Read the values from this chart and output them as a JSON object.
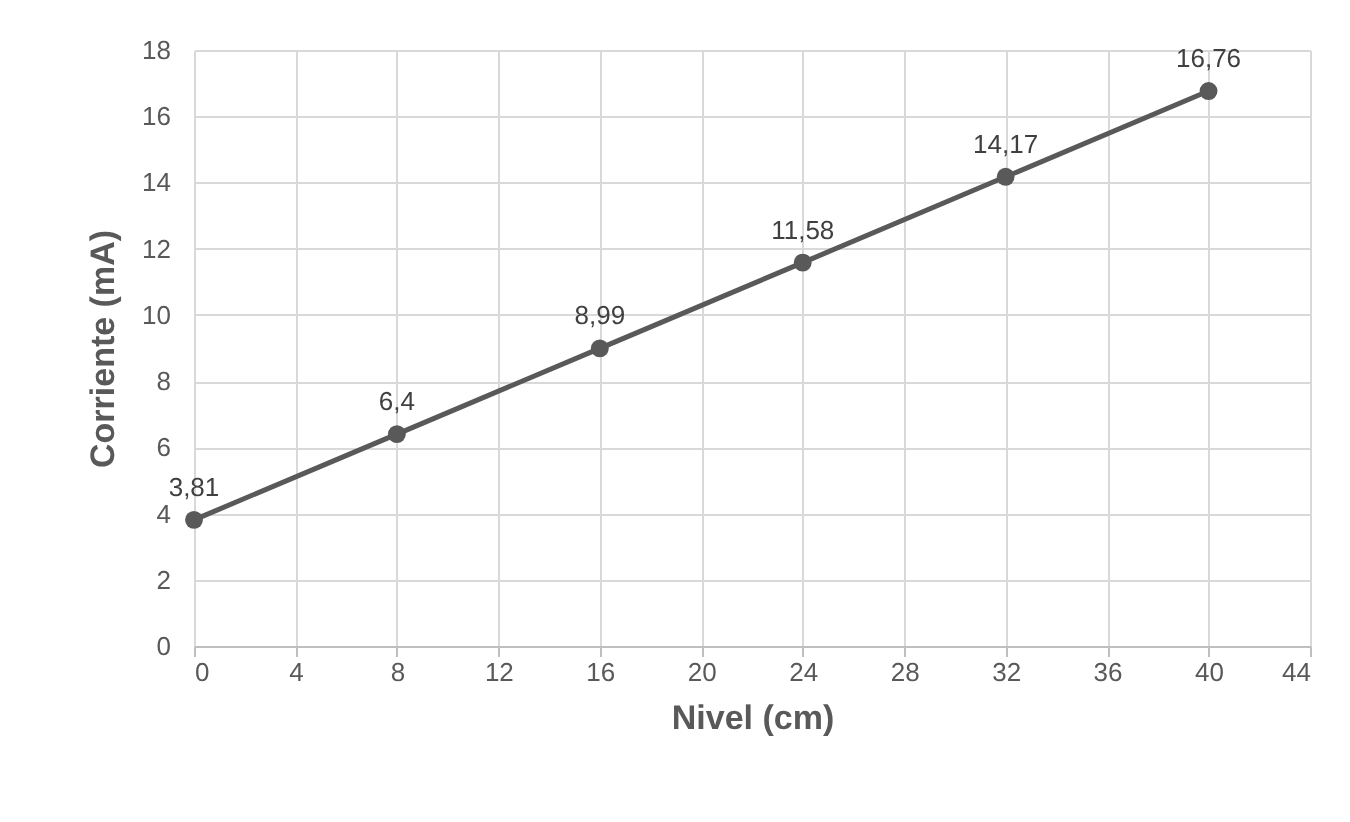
{
  "chart_data": {
    "type": "line",
    "xlabel": "Nivel (cm)",
    "ylabel": "Corriente (mA)",
    "x": [
      0,
      8,
      16,
      24,
      32,
      40
    ],
    "series": [
      {
        "color": "#595959",
        "values": [
          3.81,
          6.4,
          8.99,
          11.58,
          14.17,
          16.76
        ],
        "value_labels": [
          "3,81",
          "6,4",
          "8,99",
          "11,58",
          "14,17",
          "16,76"
        ]
      }
    ],
    "xlim": [
      0,
      44
    ],
    "xticks": [
      0,
      4,
      8,
      12,
      16,
      20,
      24,
      28,
      32,
      36,
      40,
      44
    ],
    "ylim": [
      0,
      18
    ],
    "yticks": [
      0,
      2,
      4,
      6,
      8,
      10,
      12,
      14,
      16,
      18
    ],
    "grid": true,
    "marker": "circle",
    "line_style": "solid",
    "legend": false
  }
}
